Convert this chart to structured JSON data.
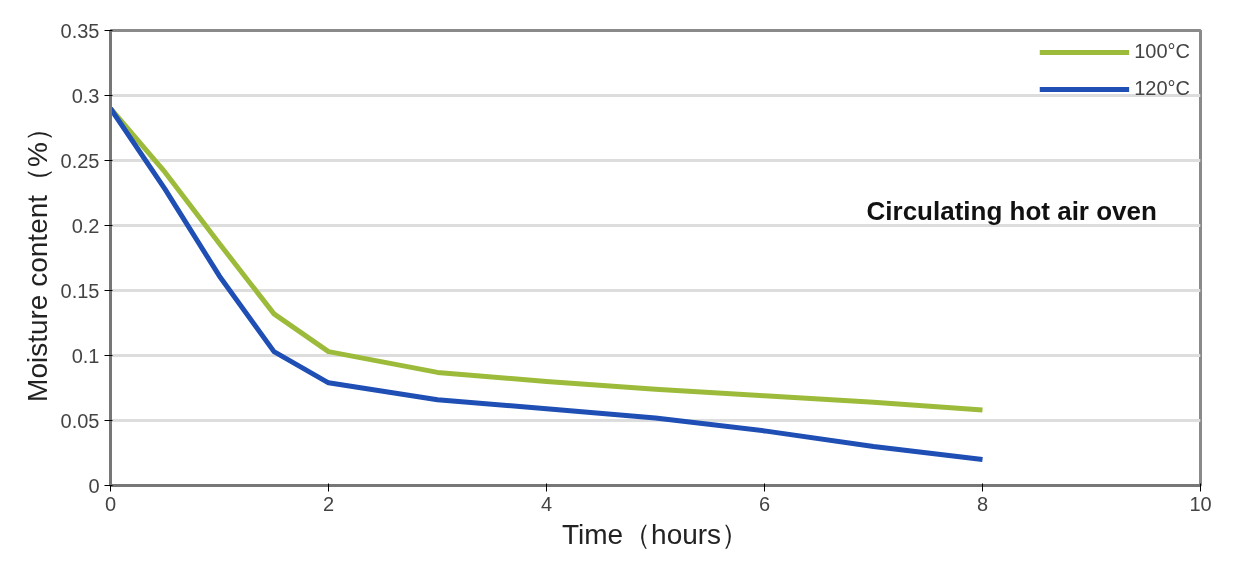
{
  "chart_data": {
    "type": "line",
    "xlabel": "Time（hours）",
    "ylabel": "Moisture content（%）",
    "x": [
      0,
      0.5,
      1,
      1.5,
      2,
      3,
      4,
      5,
      6,
      7,
      8
    ],
    "series": [
      {
        "name": "100°C",
        "color": "#9dbb3a",
        "values": [
          0.29,
          0.241,
          0.186,
          0.132,
          0.103,
          0.087,
          0.08,
          0.074,
          0.069,
          0.064,
          0.058
        ]
      },
      {
        "name": "120°C",
        "color": "#1f4fb4",
        "values": [
          0.29,
          0.228,
          0.161,
          0.103,
          0.079,
          0.066,
          0.059,
          0.052,
          0.042,
          0.03,
          0.02
        ]
      }
    ],
    "xlim": [
      0,
      10
    ],
    "xticks": [
      0,
      2,
      4,
      6,
      8,
      10
    ],
    "ylim": [
      0,
      0.35
    ],
    "yticks": [
      0,
      0.05,
      0.1,
      0.15,
      0.2,
      0.25,
      0.3,
      0.35
    ],
    "grid": "y",
    "legend": "top right",
    "line_style": "solid",
    "marker": "none",
    "annotations": [
      "Circulating hot air oven"
    ]
  }
}
